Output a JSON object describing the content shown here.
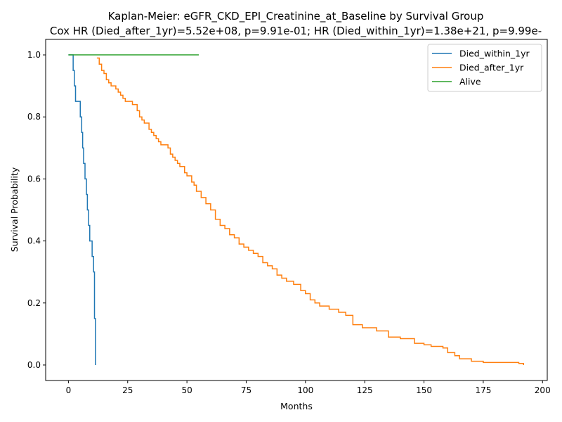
{
  "chart_data": {
    "type": "line",
    "step": true,
    "title": "Kaplan-Meier: eGFR_CKD_EPI_Creatinine_at_Baseline by Survival Group",
    "subtitle": "Cox HR (Died_after_1yr)=5.52e+08, p=9.91e-01; HR (Died_within_1yr)=1.38e+21, p=9.99e-",
    "xlabel": "Months",
    "ylabel": "Survival Probability",
    "xlim": [
      -9.6,
      202.0
    ],
    "ylim": [
      -0.05,
      1.05
    ],
    "xticks": [
      0,
      25,
      50,
      75,
      100,
      125,
      150,
      175,
      200
    ],
    "yticks": [
      0.0,
      0.2,
      0.4,
      0.6,
      0.8,
      1.0
    ],
    "xtick_labels": [
      "0",
      "25",
      "50",
      "75",
      "100",
      "125",
      "150",
      "175",
      "200"
    ],
    "ytick_labels": [
      "0.0",
      "0.2",
      "0.4",
      "0.6",
      "0.8",
      "1.0"
    ],
    "grid": false,
    "legend_position": "top-right",
    "series": [
      {
        "name": "Died_within_1yr",
        "color": "#1f77b4",
        "x": [
          0,
          2.0,
          2.5,
          3.0,
          5.0,
          5.6,
          6.0,
          6.4,
          7.0,
          7.6,
          8.0,
          8.5,
          9.0,
          10.0,
          10.6,
          11.0,
          11.4
        ],
        "y": [
          1.0,
          0.95,
          0.9,
          0.85,
          0.8,
          0.75,
          0.7,
          0.65,
          0.6,
          0.55,
          0.5,
          0.45,
          0.4,
          0.35,
          0.3,
          0.15,
          0.0
        ]
      },
      {
        "name": "Died_after_1yr",
        "color": "#ff7f0e",
        "x": [
          12,
          13,
          14,
          15,
          16,
          17,
          18,
          20,
          21,
          22,
          23,
          24,
          27,
          29,
          30,
          31,
          32,
          34,
          35,
          36,
          37,
          38,
          39,
          42,
          43,
          44,
          45,
          46,
          47,
          49,
          50,
          52,
          53,
          54,
          56,
          58,
          60,
          62,
          64,
          66,
          68,
          70,
          72,
          74,
          76,
          78,
          80,
          82,
          84,
          86,
          88,
          90,
          92,
          95,
          98,
          100,
          102,
          104,
          106,
          110,
          114,
          117,
          120,
          124,
          130,
          135,
          140,
          146,
          150,
          153,
          158,
          160,
          163,
          165,
          170,
          175,
          190,
          192
        ],
        "y": [
          0.99,
          0.97,
          0.95,
          0.94,
          0.92,
          0.91,
          0.9,
          0.89,
          0.88,
          0.87,
          0.86,
          0.85,
          0.84,
          0.82,
          0.8,
          0.79,
          0.78,
          0.76,
          0.75,
          0.74,
          0.73,
          0.72,
          0.71,
          0.7,
          0.68,
          0.67,
          0.66,
          0.65,
          0.64,
          0.62,
          0.61,
          0.59,
          0.58,
          0.56,
          0.54,
          0.52,
          0.5,
          0.47,
          0.45,
          0.44,
          0.42,
          0.41,
          0.39,
          0.38,
          0.37,
          0.36,
          0.35,
          0.33,
          0.32,
          0.31,
          0.29,
          0.28,
          0.27,
          0.26,
          0.24,
          0.23,
          0.21,
          0.2,
          0.19,
          0.18,
          0.17,
          0.16,
          0.13,
          0.12,
          0.11,
          0.09,
          0.085,
          0.07,
          0.065,
          0.06,
          0.055,
          0.04,
          0.03,
          0.02,
          0.012,
          0.008,
          0.005,
          0.0
        ]
      },
      {
        "name": "Alive",
        "color": "#2ca02c",
        "x": [
          0,
          55
        ],
        "y": [
          1.0,
          1.0
        ]
      }
    ]
  }
}
